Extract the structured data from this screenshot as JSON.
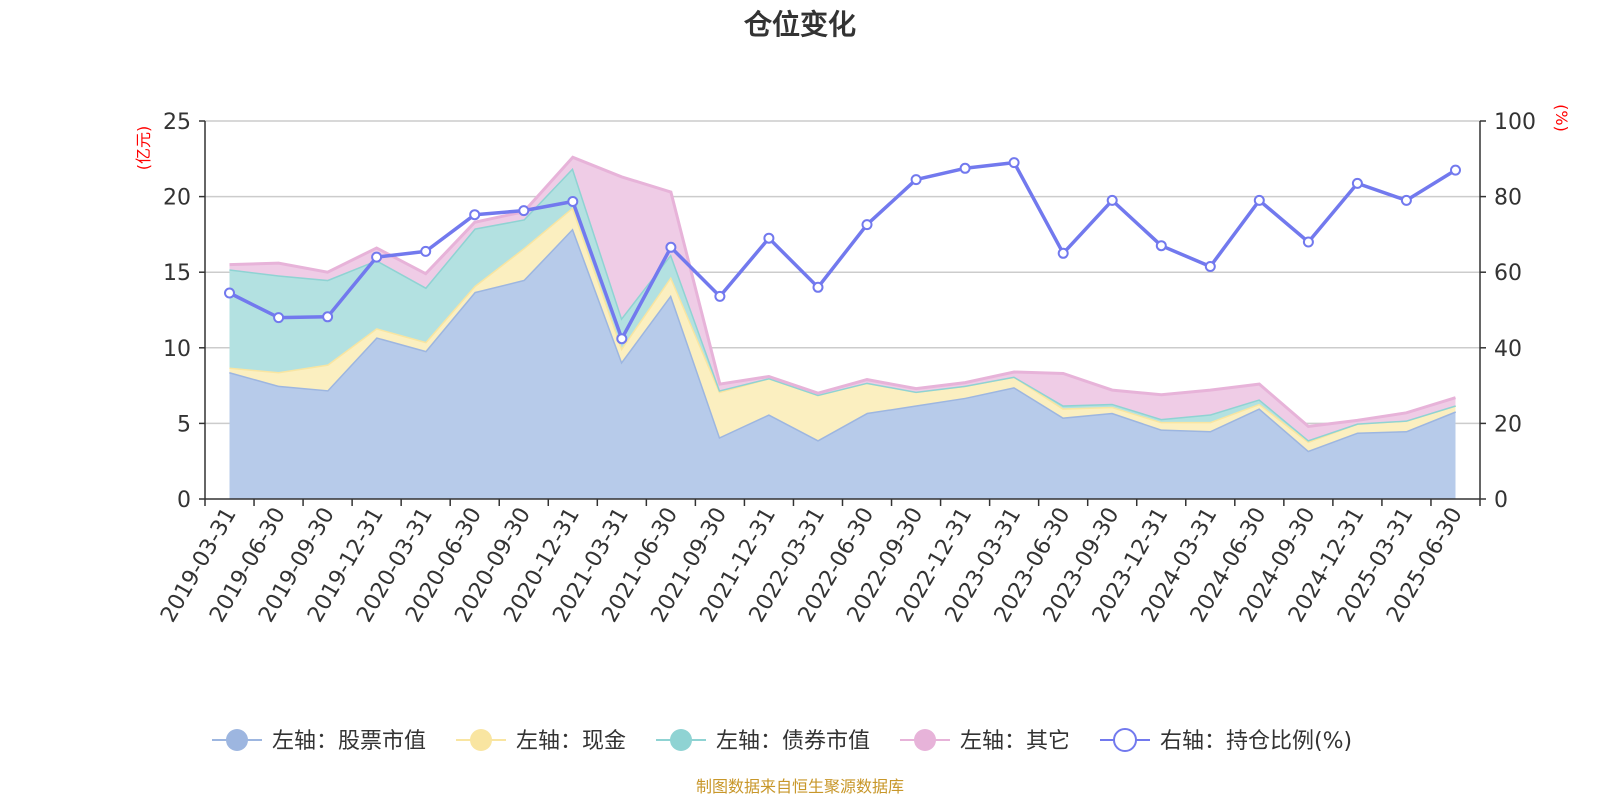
{
  "chart_data": {
    "type": "area",
    "title": "仓位变化",
    "left_axis_unit": "(亿元)",
    "right_axis_unit": "(%)",
    "left_ylim": [
      0,
      25
    ],
    "left_ticks": [
      0,
      5,
      10,
      15,
      20,
      25
    ],
    "right_ylim": [
      0,
      100
    ],
    "right_ticks": [
      0,
      20,
      40,
      60,
      80,
      100
    ],
    "categories": [
      "2019-03-31",
      "2019-06-30",
      "2019-09-30",
      "2019-12-31",
      "2020-03-31",
      "2020-06-30",
      "2020-09-30",
      "2020-12-31",
      "2021-03-31",
      "2021-06-30",
      "2021-09-30",
      "2021-12-31",
      "2022-03-31",
      "2022-06-30",
      "2022-09-30",
      "2022-12-31",
      "2023-03-31",
      "2023-06-30",
      "2023-09-30",
      "2023-12-31",
      "2024-03-31",
      "2024-06-30",
      "2024-09-30",
      "2024-12-31",
      "2025-03-31",
      "2025-06-30"
    ],
    "series": [
      {
        "name": "左轴：股票市值",
        "axis": "left",
        "type": "area",
        "color": "#9db6e0",
        "fill": "#b7cbea",
        "values": [
          8.4,
          7.5,
          7.2,
          10.7,
          9.8,
          13.7,
          14.5,
          17.9,
          9.1,
          13.5,
          4.1,
          5.6,
          3.9,
          5.7,
          6.2,
          6.7,
          7.4,
          5.4,
          5.7,
          4.6,
          4.5,
          6.0,
          3.2,
          4.4,
          4.5,
          5.8
        ]
      },
      {
        "name": "左轴：现金",
        "axis": "left",
        "type": "area",
        "color": "#f9e5a1",
        "fill": "#fbefc0",
        "values": [
          0.3,
          0.9,
          1.7,
          0.6,
          0.6,
          0.4,
          2.1,
          1.4,
          0.9,
          1.2,
          3.0,
          2.4,
          3.0,
          2.0,
          0.9,
          0.8,
          0.7,
          0.6,
          0.4,
          0.5,
          0.6,
          0.3,
          0.6,
          0.6,
          0.7,
          0.4
        ]
      },
      {
        "name": "左轴：债券市值",
        "axis": "left",
        "type": "area",
        "color": "#8fd3d3",
        "fill": "#b3e1e1",
        "values": [
          6.5,
          6.4,
          5.6,
          4.5,
          3.6,
          3.8,
          1.9,
          2.6,
          2.0,
          1.5,
          0.1,
          0.0,
          0.0,
          0.0,
          0.0,
          0.0,
          0.0,
          0.2,
          0.2,
          0.2,
          0.5,
          0.3,
          0.1,
          0.0,
          0.0,
          0.0
        ]
      },
      {
        "name": "左轴：其它",
        "axis": "left",
        "type": "area",
        "color": "#e7b3d9",
        "fill": "#efcce6",
        "values": [
          0.3,
          0.8,
          0.5,
          0.8,
          0.9,
          0.4,
          0.5,
          0.7,
          9.3,
          4.1,
          0.4,
          0.1,
          0.1,
          0.2,
          0.2,
          0.2,
          0.3,
          2.1,
          0.9,
          1.6,
          1.6,
          1.0,
          0.9,
          0.2,
          0.5,
          0.5
        ]
      },
      {
        "name": "右轴：持仓比例(%)",
        "axis": "right",
        "type": "line",
        "color": "#7279ee",
        "values": [
          54.5,
          48.0,
          48.2,
          64.0,
          65.5,
          75.2,
          76.3,
          78.7,
          42.4,
          66.6,
          53.6,
          69.0,
          56.0,
          72.6,
          84.5,
          87.5,
          89.0,
          65.0,
          79.0,
          67.0,
          61.5,
          79.0,
          68.0,
          83.5,
          79.0,
          87.0
        ]
      }
    ],
    "legend_position": "bottom",
    "grid": true
  },
  "footer": {
    "source": "制图数据来自恒生聚源数据库"
  }
}
